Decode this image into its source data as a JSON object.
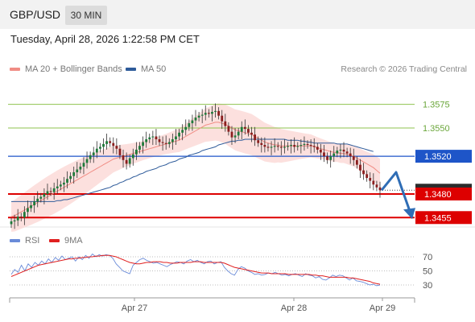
{
  "header": {
    "symbol": "GBP/USD",
    "timeframe": "30 MIN"
  },
  "timestamp": "Tuesday, April 28, 2026 1:22:58 PM CET",
  "legend": {
    "items": [
      {
        "label": "MA 20 + Bollinger Bands",
        "color": "#f08c84"
      },
      {
        "label": "MA 50",
        "color": "#2e5b9a"
      }
    ],
    "credit": "Research © 2026 Trading Central"
  },
  "rsi_legend": [
    {
      "label": "RSI",
      "color": "#6a8bd8"
    },
    {
      "label": "9MA",
      "color": "#e02020"
    }
  ],
  "chart_data": {
    "type": "candlestick",
    "pair": "GBP/USD",
    "interval": "30 MIN",
    "ylim": [
      1.3445,
      1.3602
    ],
    "x_labels": [
      "Apr 27",
      "Apr 28",
      "Apr 29"
    ],
    "levels": [
      {
        "value": 1.3575,
        "label": "1.3575",
        "kind": "resistance",
        "color": "#8fc34f"
      },
      {
        "value": 1.355,
        "label": "1.3550",
        "kind": "resistance",
        "color": "#8fc34f"
      },
      {
        "value": 1.352,
        "label": "1.3520",
        "kind": "pivot",
        "color": "#1e55c8"
      },
      {
        "value": 1.348,
        "label": "1.3480",
        "kind": "support",
        "color": "#dd0000"
      },
      {
        "value": 1.3455,
        "label": "1.3455",
        "kind": "support",
        "color": "#dd0000"
      }
    ],
    "current_price": {
      "value": 1.3484,
      "label": "1.3484"
    },
    "forecast": {
      "direction": "down",
      "target": 1.3455,
      "via": 1.3503
    },
    "close_series": [
      1.3451,
      1.3452,
      1.3456,
      1.3455,
      1.3461,
      1.3465,
      1.3468,
      1.3472,
      1.3475,
      1.3477,
      1.348,
      1.3483,
      1.3482,
      1.3486,
      1.3488,
      1.349,
      1.3492,
      1.3496,
      1.3499,
      1.3503,
      1.3506,
      1.3509,
      1.3513,
      1.3517,
      1.3521,
      1.3524,
      1.3528,
      1.353,
      1.3533,
      1.3536,
      1.3534,
      1.3531,
      1.3528,
      1.3521,
      1.3516,
      1.3512,
      1.3518,
      1.3522,
      1.3527,
      1.3531,
      1.3535,
      1.3538,
      1.354,
      1.3541,
      1.3538,
      1.3535,
      1.3534,
      1.3533,
      1.3535,
      1.3538,
      1.3541,
      1.3545,
      1.3548,
      1.3551,
      1.3555,
      1.3558,
      1.3561,
      1.3563,
      1.3564,
      1.3566,
      1.3565,
      1.3567,
      1.3568,
      1.3563,
      1.3557,
      1.3552,
      1.3546,
      1.354,
      1.3542,
      1.3546,
      1.3551,
      1.3549,
      1.3545,
      1.3543,
      1.3537,
      1.3534,
      1.3532,
      1.353,
      1.3529,
      1.353,
      1.3531,
      1.353,
      1.3529,
      1.353,
      1.3531,
      1.3532,
      1.353,
      1.3531,
      1.3532,
      1.3533,
      1.3532,
      1.3531,
      1.353,
      1.3527,
      1.3524,
      1.352,
      1.3516,
      1.352,
      1.3523,
      1.3526,
      1.3527,
      1.3525,
      1.3523,
      1.352,
      1.3516,
      1.3511,
      1.3505,
      1.3501,
      1.3497,
      1.3494,
      1.349,
      1.3487,
      1.3484
    ],
    "ma20_series": [
      1.3456,
      1.3457,
      1.3459,
      1.3461,
      1.3463,
      1.3465,
      1.3467,
      1.3469,
      1.3471,
      1.3473,
      1.3475,
      1.3477,
      1.3479,
      1.3481,
      1.3483,
      1.3485,
      1.3487,
      1.3489,
      1.3491,
      1.3493,
      1.3495,
      1.3497,
      1.3499,
      1.3501,
      1.3503,
      1.3505,
      1.3507,
      1.3509,
      1.3511,
      1.3513,
      1.3515,
      1.3517,
      1.3518,
      1.3519,
      1.352,
      1.3521,
      1.3522,
      1.3523,
      1.3524,
      1.3525,
      1.3526,
      1.3527,
      1.3528,
      1.3529,
      1.353,
      1.3531,
      1.3532,
      1.3533,
      1.3534,
      1.3535,
      1.3536,
      1.3537,
      1.3539,
      1.3541,
      1.3543,
      1.3545,
      1.3547,
      1.3549,
      1.3551,
      1.3553,
      1.3554,
      1.3555,
      1.3556,
      1.3556,
      1.3555,
      1.3554,
      1.3552,
      1.355,
      1.3548,
      1.3547,
      1.3546,
      1.3545,
      1.3544,
      1.3543,
      1.3541,
      1.3539,
      1.3537,
      1.3535,
      1.3534,
      1.3533,
      1.3532,
      1.3532,
      1.3531,
      1.3531,
      1.3531,
      1.3531,
      1.3531,
      1.3531,
      1.3531,
      1.3531,
      1.3531,
      1.3531,
      1.353,
      1.3529,
      1.3528,
      1.3527,
      1.3526,
      1.3525,
      1.3524,
      1.3524,
      1.3523,
      1.3523,
      1.3522,
      1.3521,
      1.352,
      1.3518,
      1.3516,
      1.3514,
      1.3512,
      1.351,
      1.3508,
      1.3505,
      1.3502
    ],
    "ma50_series": [
      1.3472,
      1.3472,
      1.3472,
      1.3472,
      1.3472,
      1.3472,
      1.3472,
      1.3472,
      1.3472,
      1.3472,
      1.3472,
      1.3472,
      1.3472,
      1.3472,
      1.3473,
      1.3473,
      1.3474,
      1.3474,
      1.3475,
      1.3476,
      1.3477,
      1.3478,
      1.3479,
      1.348,
      1.3481,
      1.3482,
      1.3483,
      1.3484,
      1.3485,
      1.3486,
      1.3487,
      1.3489,
      1.349,
      1.3492,
      1.3493,
      1.3495,
      1.3496,
      1.3498,
      1.3499,
      1.3501,
      1.3502,
      1.3504,
      1.3505,
      1.3506,
      1.3507,
      1.3509,
      1.351,
      1.3511,
      1.3513,
      1.3514,
      1.3515,
      1.3517,
      1.3518,
      1.3519,
      1.3521,
      1.3522,
      1.3523,
      1.3524,
      1.3526,
      1.3527,
      1.3528,
      1.3529,
      1.353,
      1.3532,
      1.3533,
      1.3534,
      1.3535,
      1.3536,
      1.3536,
      1.3537,
      1.3537,
      1.3538,
      1.3538,
      1.3538,
      1.3538,
      1.3538,
      1.3538,
      1.3538,
      1.3538,
      1.3538,
      1.3538,
      1.3538,
      1.3538,
      1.3538,
      1.3537,
      1.3537,
      1.3537,
      1.3537,
      1.3536,
      1.3536,
      1.3535,
      1.3535,
      1.3534,
      1.3534,
      1.3534,
      1.3534,
      1.3534,
      1.3534,
      1.3534,
      1.3533,
      1.3533,
      1.3533,
      1.3533,
      1.3532,
      1.3531,
      1.353,
      1.3529,
      1.3528,
      1.3527,
      1.3526,
      1.3525
    ],
    "rsi": {
      "levels": [
        70,
        50,
        30
      ],
      "ylim": [
        14,
        78
      ],
      "rsi_series": [
        45,
        52,
        48,
        58,
        50,
        60,
        55,
        62,
        58,
        64,
        60,
        67,
        62,
        69,
        65,
        71,
        66,
        68,
        70,
        64,
        70,
        66,
        72,
        68,
        74,
        70,
        73,
        71,
        73,
        72,
        68,
        60,
        55,
        50,
        48,
        46,
        58,
        62,
        66,
        68,
        65,
        63,
        61,
        62,
        60,
        58,
        56,
        59,
        61,
        63,
        62,
        60,
        64,
        66,
        63,
        65,
        62,
        60,
        63,
        64,
        60,
        62,
        63,
        55,
        50,
        46,
        44,
        52,
        56,
        54,
        50,
        48,
        45,
        46,
        44,
        45,
        47,
        46,
        48,
        46,
        44,
        45,
        43,
        45,
        46,
        44,
        42,
        46,
        44,
        43,
        40,
        42,
        38,
        37,
        40,
        44,
        42,
        44,
        43,
        40,
        37,
        40,
        36,
        35,
        34,
        32,
        30,
        31,
        29,
        30
      ],
      "ma9_series": [
        42,
        44,
        46,
        48,
        50,
        52,
        54,
        56,
        58,
        59,
        60,
        61,
        62,
        63,
        64,
        65,
        66,
        67,
        67,
        68,
        68,
        69,
        69,
        70,
        70,
        71,
        71,
        72,
        72,
        72,
        71,
        70,
        68,
        66,
        64,
        62,
        61,
        60,
        60,
        61,
        62,
        62,
        63,
        63,
        63,
        62,
        62,
        61,
        61,
        61,
        62,
        62,
        62,
        62,
        63,
        63,
        63,
        62,
        62,
        62,
        62,
        62,
        62,
        61,
        59,
        57,
        55,
        54,
        53,
        52,
        51,
        50,
        49,
        48,
        47,
        47,
        47,
        46,
        46,
        46,
        46,
        46,
        45,
        45,
        45,
        45,
        45,
        45,
        45,
        44,
        44,
        43,
        43,
        42,
        41,
        41,
        41,
        41,
        41,
        41,
        40,
        40,
        39,
        38,
        37,
        36,
        35,
        33,
        32,
        31
      ]
    }
  }
}
